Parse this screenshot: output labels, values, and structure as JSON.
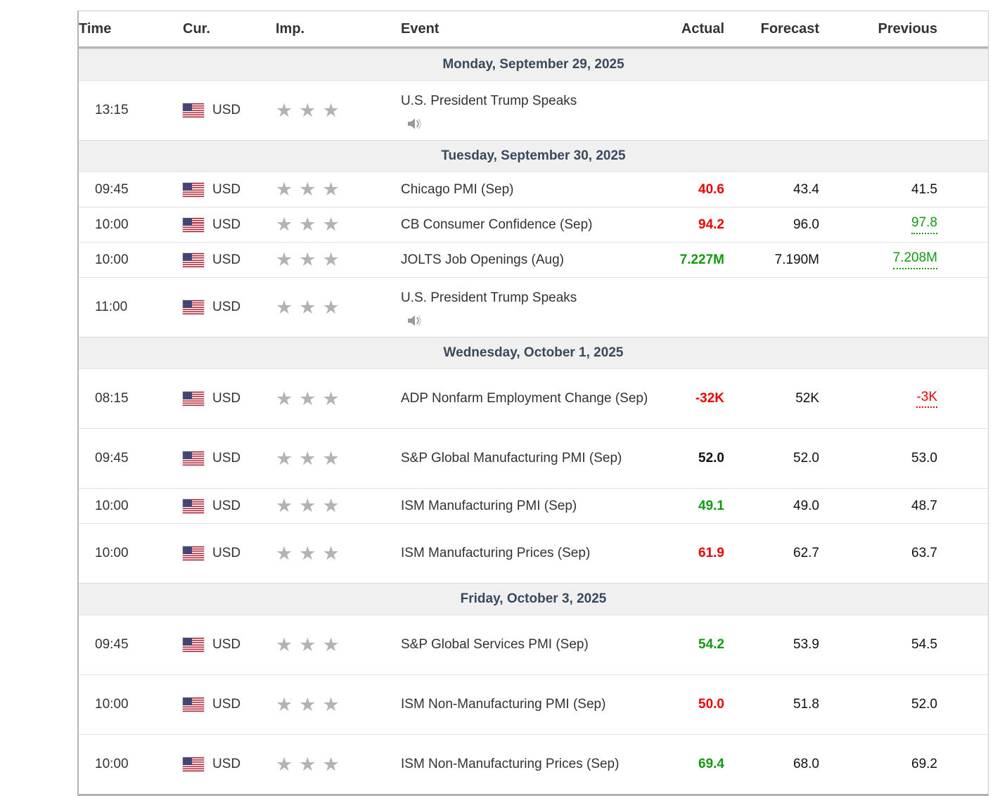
{
  "table": {
    "columns": [
      {
        "key": "time",
        "label": "Time"
      },
      {
        "key": "cur",
        "label": "Cur."
      },
      {
        "key": "imp",
        "label": "Imp."
      },
      {
        "key": "event",
        "label": "Event"
      },
      {
        "key": "actual",
        "label": "Actual"
      },
      {
        "key": "forecast",
        "label": "Forecast"
      },
      {
        "key": "previous",
        "label": "Previous"
      }
    ],
    "sections": [
      {
        "date": "Monday, September 29, 2025",
        "rows": [
          {
            "time": "13:15",
            "currency": "USD",
            "importance": 3,
            "event": "U.S. President Trump Speaks",
            "speech": true,
            "actual": "",
            "actual_color": "neutral",
            "forecast": "",
            "previous": "",
            "previous_color": "neutral",
            "previous_dotted": false
          }
        ]
      },
      {
        "date": "Tuesday, September 30, 2025",
        "rows": [
          {
            "time": "09:45",
            "currency": "USD",
            "importance": 3,
            "event": "Chicago PMI (Sep)",
            "speech": false,
            "actual": "40.6",
            "actual_color": "red",
            "forecast": "43.4",
            "previous": "41.5",
            "previous_color": "neutral",
            "previous_dotted": false
          },
          {
            "time": "10:00",
            "currency": "USD",
            "importance": 3,
            "event": "CB Consumer Confidence (Sep)",
            "speech": false,
            "actual": "94.2",
            "actual_color": "red",
            "forecast": "96.0",
            "previous": "97.8",
            "previous_color": "green",
            "previous_dotted": true
          },
          {
            "time": "10:00",
            "currency": "USD",
            "importance": 3,
            "event": "JOLTS Job Openings (Aug)",
            "speech": false,
            "actual": "7.227M",
            "actual_color": "green",
            "forecast": "7.190M",
            "previous": "7.208M",
            "previous_color": "green",
            "previous_dotted": true
          },
          {
            "time": "11:00",
            "currency": "USD",
            "importance": 3,
            "event": "U.S. President Trump Speaks",
            "speech": true,
            "actual": "",
            "actual_color": "neutral",
            "forecast": "",
            "previous": "",
            "previous_color": "neutral",
            "previous_dotted": false
          }
        ]
      },
      {
        "date": "Wednesday, October 1, 2025",
        "rows": [
          {
            "time": "08:15",
            "currency": "USD",
            "importance": 3,
            "event": "ADP Nonfarm Employment Change (Sep)",
            "speech": false,
            "actual": "-32K",
            "actual_color": "red",
            "forecast": "52K",
            "previous": "-3K",
            "previous_color": "red",
            "previous_dotted": true
          },
          {
            "time": "09:45",
            "currency": "USD",
            "importance": 3,
            "event": "S&P Global Manufacturing PMI (Sep)",
            "speech": false,
            "actual": "52.0",
            "actual_color": "neutral",
            "forecast": "52.0",
            "previous": "53.0",
            "previous_color": "neutral",
            "previous_dotted": false
          },
          {
            "time": "10:00",
            "currency": "USD",
            "importance": 3,
            "event": "ISM Manufacturing PMI (Sep)",
            "speech": false,
            "actual": "49.1",
            "actual_color": "green",
            "forecast": "49.0",
            "previous": "48.7",
            "previous_color": "neutral",
            "previous_dotted": false
          },
          {
            "time": "10:00",
            "currency": "USD",
            "importance": 3,
            "event": "ISM Manufacturing Prices (Sep)",
            "speech": false,
            "actual": "61.9",
            "actual_color": "red",
            "forecast": "62.7",
            "previous": "63.7",
            "previous_color": "neutral",
            "previous_dotted": false
          }
        ]
      },
      {
        "date": "Friday, October 3, 2025",
        "rows": [
          {
            "time": "09:45",
            "currency": "USD",
            "importance": 3,
            "event": "S&P Global Services PMI (Sep)",
            "speech": false,
            "actual": "54.2",
            "actual_color": "green",
            "forecast": "53.9",
            "previous": "54.5",
            "previous_color": "neutral",
            "previous_dotted": false
          },
          {
            "time": "10:00",
            "currency": "USD",
            "importance": 3,
            "event": "ISM Non-Manufacturing PMI (Sep)",
            "speech": false,
            "actual": "50.0",
            "actual_color": "red",
            "forecast": "51.8",
            "previous": "52.0",
            "previous_color": "neutral",
            "previous_dotted": false
          },
          {
            "time": "10:00",
            "currency": "USD",
            "importance": 3,
            "event": "ISM Non-Manufacturing Prices (Sep)",
            "speech": false,
            "actual": "69.4",
            "actual_color": "green",
            "forecast": "68.0",
            "previous": "69.2",
            "previous_color": "neutral",
            "previous_dotted": false
          }
        ]
      }
    ],
    "colors": {
      "positive": "#119b11",
      "negative": "#ec0000",
      "neutral_value": "#111111",
      "header_text": "#333333",
      "day_header_text": "#39495c",
      "day_header_bg": "#f0f0f0",
      "star_gray": "#b3b3b3",
      "speaker_gray": "#9a9a9a",
      "flag_red": "#b22234",
      "flag_blue": "#3c3b6e"
    },
    "icons": {
      "flag": "us-flag-icon",
      "importance": "importance-star-icon",
      "speech": "speaker-icon"
    }
  }
}
